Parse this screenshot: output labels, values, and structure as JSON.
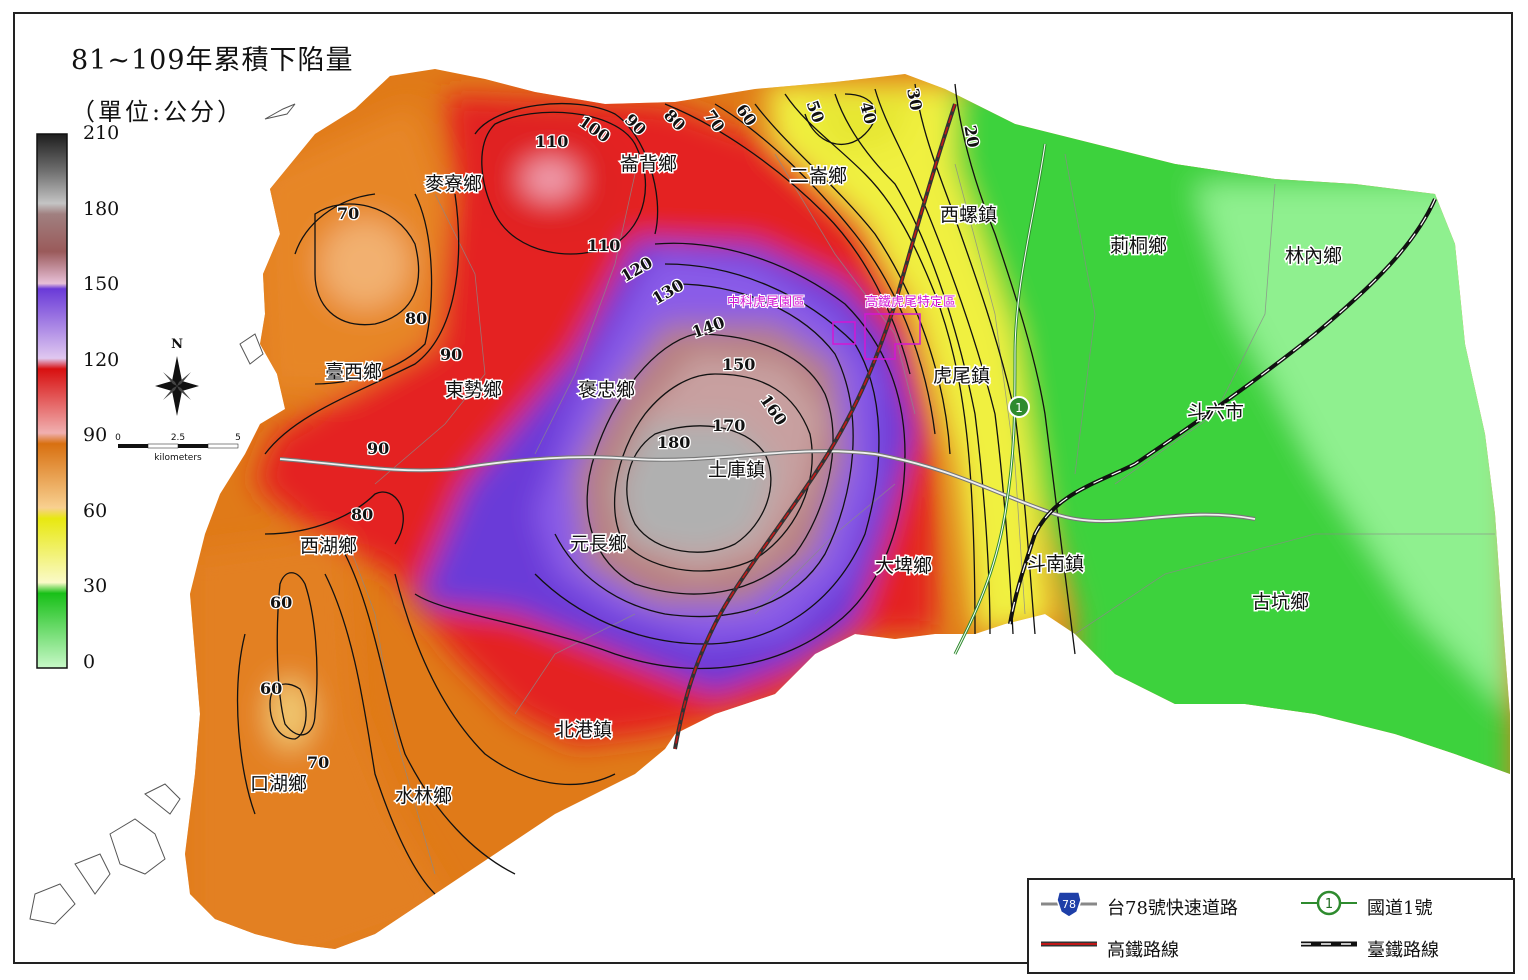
{
  "title": "81~109年累積下陷量",
  "unit": "（單位:公分）",
  "colorbar": {
    "ticks": [
      "210",
      "180",
      "150",
      "120",
      "90",
      "60",
      "30",
      "0"
    ],
    "colors": [
      "#2b2b2b",
      "#bfbfbf",
      "#a8a8a8",
      "#8c5a5a",
      "#c48f8f",
      "#e8c8d8",
      "#4a20c8",
      "#a888e8",
      "#e01818",
      "#e86a6a",
      "#e07a18",
      "#f0b060",
      "#e8e820",
      "#f8f880",
      "#28c828",
      "#90f090"
    ]
  },
  "north": {
    "label": "N"
  },
  "scale_bar": {
    "ticks": [
      "0",
      "2.5",
      "5"
    ],
    "unit": "kilometers"
  },
  "towns": [
    {
      "name": "麥寮鄉"
    },
    {
      "name": "崙背鄉"
    },
    {
      "name": "二崙鄉"
    },
    {
      "name": "西螺鎮"
    },
    {
      "name": "莿桐鄉"
    },
    {
      "name": "林內鄉"
    },
    {
      "name": "臺西鄉"
    },
    {
      "name": "東勢鄉"
    },
    {
      "name": "褒忠鄉"
    },
    {
      "name": "虎尾鎮"
    },
    {
      "name": "斗六市"
    },
    {
      "name": "土庫鎮"
    },
    {
      "name": "元長鄉"
    },
    {
      "name": "西湖鄉"
    },
    {
      "name": "大埤鄉"
    },
    {
      "name": "斗南鎮"
    },
    {
      "name": "古坑鄉"
    },
    {
      "name": "北港鎮"
    },
    {
      "name": "口湖鄉"
    },
    {
      "name": "水林鄉"
    }
  ],
  "contour_labels": [
    "110",
    "100",
    "90",
    "80",
    "70",
    "60",
    "50",
    "40",
    "30",
    "20",
    "70",
    "80",
    "90",
    "110",
    "120",
    "130",
    "140",
    "150",
    "160",
    "170",
    "180",
    "90",
    "80",
    "60",
    "60",
    "70"
  ],
  "zones": [
    "中科虎尾園區",
    "高鐵虎尾特定區"
  ],
  "legend": {
    "items": [
      {
        "label": "台78號快速道路",
        "icon": "route-78-shield-icon",
        "shield": "78"
      },
      {
        "label": "國道1號",
        "icon": "national-highway-1-icon",
        "shield": "1"
      },
      {
        "label": "高鐵路線",
        "icon": "high-speed-rail-line-icon"
      },
      {
        "label": "臺鐵路線",
        "icon": "taiwan-railway-line-icon"
      }
    ]
  },
  "highway_marker": "1"
}
